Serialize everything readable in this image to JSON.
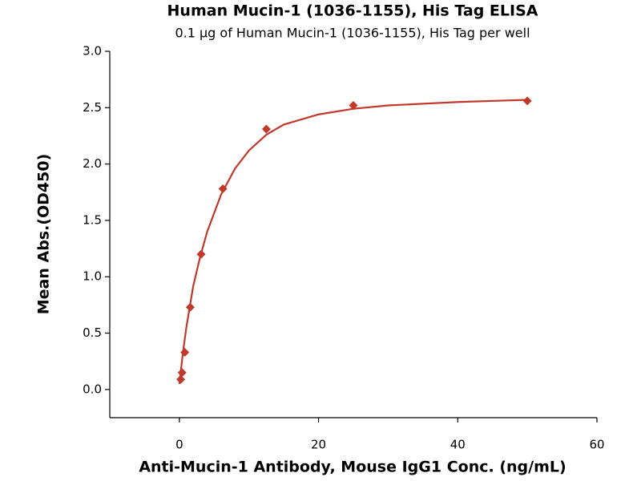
{
  "chart_data": {
    "type": "scatter",
    "title": "Human Mucin-1 (1036-1155), His Tag ELISA",
    "subtitle": "0.1 μg of Human Mucin-1 (1036-1155), His Tag per well",
    "x_label": "Anti-Mucin-1 Antibody, Mouse IgG1 Conc. (ng/mL)",
    "y_label": "Mean Abs.(OD450)",
    "x": [
      0.195,
      0.39,
      0.78,
      1.56,
      3.125,
      6.25,
      12.5,
      25,
      50
    ],
    "values": [
      0.09,
      0.15,
      0.33,
      0.73,
      1.2,
      1.78,
      2.31,
      2.52,
      2.56
    ],
    "color": "#c0392b",
    "fit": {
      "x": [
        0,
        0.5,
        1,
        2,
        3,
        4,
        6,
        8,
        10,
        12.5,
        15,
        20,
        25,
        30,
        40,
        50
      ],
      "values": [
        0.05,
        0.32,
        0.55,
        0.92,
        1.18,
        1.4,
        1.73,
        1.96,
        2.12,
        2.26,
        2.35,
        2.44,
        2.49,
        2.52,
        2.55,
        2.57
      ],
      "color": "#c0392b"
    },
    "xlim": [
      -10,
      60
    ],
    "xticks": [
      0,
      20,
      40,
      60
    ],
    "ylim": [
      -0.25,
      3.0
    ],
    "yticks": [
      {
        "value": 0,
        "label": "0.0"
      },
      0.5,
      {
        "value": 1,
        "label": "1.0"
      },
      1.5,
      {
        "value": 2,
        "label": "2.0"
      },
      2.5,
      {
        "value": 3,
        "label": "3.0"
      }
    ]
  }
}
